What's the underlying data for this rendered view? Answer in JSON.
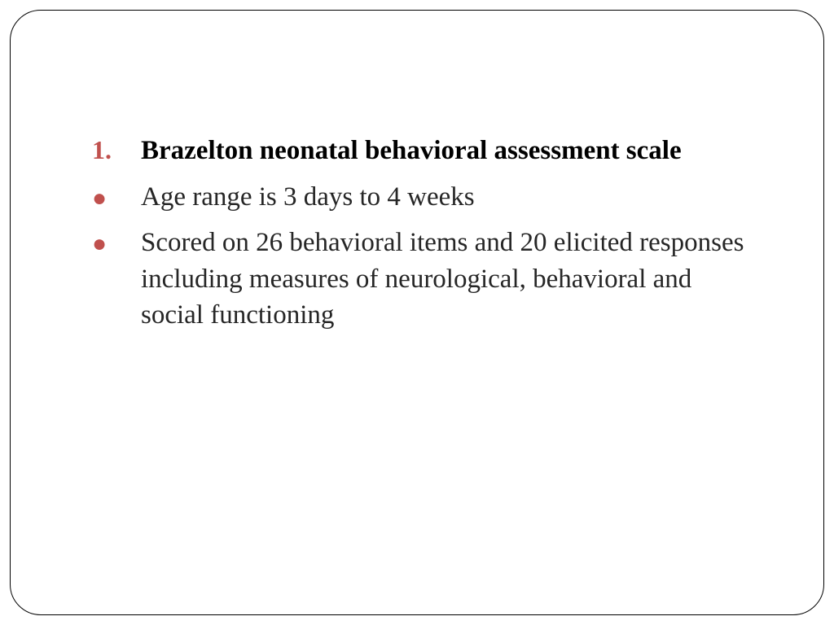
{
  "slide": {
    "border_color": "#000000",
    "border_radius": 38,
    "background": "#ffffff",
    "accent_color": "#c0504d",
    "body_text_color": "#262626",
    "heading_text_color": "#000000",
    "font_family": "Times New Roman",
    "font_size_pt": 33,
    "items": [
      {
        "marker": "1.",
        "marker_type": "number",
        "text": "Brazelton neonatal behavioral assessment scale",
        "bold": true
      },
      {
        "marker": "●",
        "marker_type": "bullet",
        "text": "Age range is 3 days to 4 weeks",
        "bold": false
      },
      {
        "marker": "●",
        "marker_type": "bullet",
        "text": "Scored on 26 behavioral items and 20 elicited responses including measures of neurological, behavioral and social functioning",
        "bold": false
      }
    ]
  }
}
